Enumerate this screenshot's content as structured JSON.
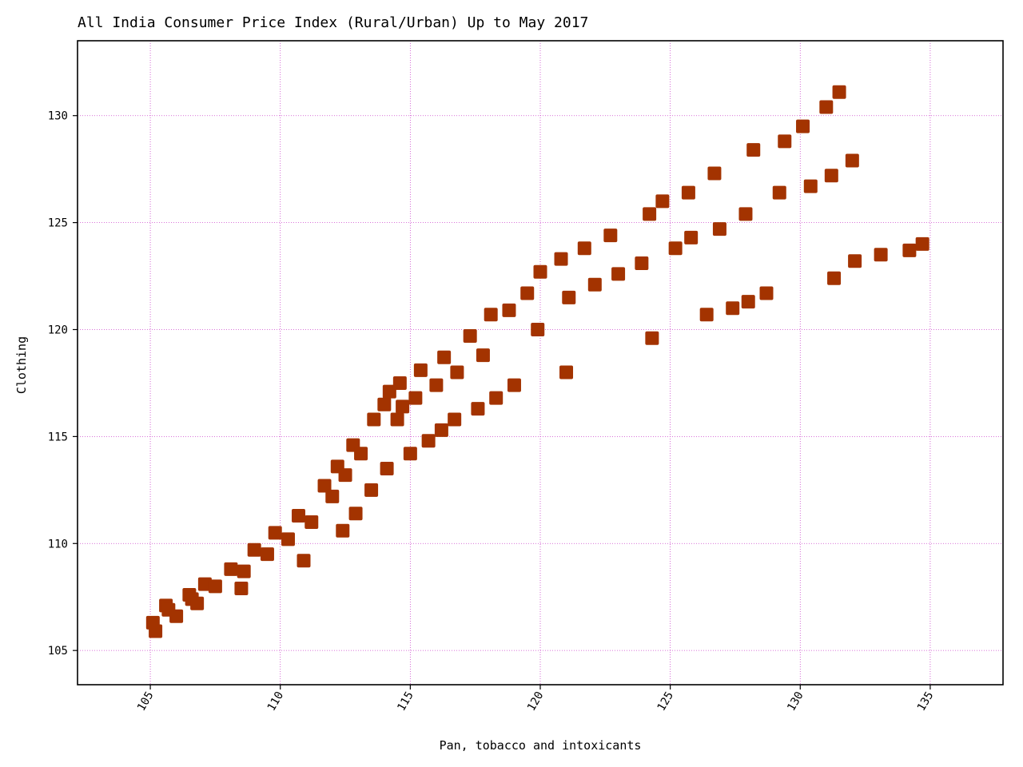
{
  "chart_data": {
    "type": "scatter",
    "title": "All India Consumer Price Index (Rural/Urban) Up to May 2017",
    "xlabel": "Pan, tobacco and intoxicants",
    "ylabel": "Clothing",
    "xlim": [
      102.2,
      137.8
    ],
    "ylim": [
      103.4,
      133.5
    ],
    "xticks": [
      105,
      110,
      115,
      120,
      125,
      130,
      135
    ],
    "yticks": [
      105,
      110,
      115,
      120,
      125,
      130
    ],
    "grid": true,
    "grid_color": "#cc44cc",
    "marker": "square",
    "marker_color": "#a33300",
    "points": [
      {
        "x": 105.1,
        "y": 106.3
      },
      {
        "x": 105.2,
        "y": 105.9
      },
      {
        "x": 105.6,
        "y": 107.1
      },
      {
        "x": 105.7,
        "y": 106.9
      },
      {
        "x": 106.0,
        "y": 106.6
      },
      {
        "x": 106.5,
        "y": 107.6
      },
      {
        "x": 106.6,
        "y": 107.4
      },
      {
        "x": 106.8,
        "y": 107.2
      },
      {
        "x": 107.1,
        "y": 108.1
      },
      {
        "x": 107.5,
        "y": 108.0
      },
      {
        "x": 108.1,
        "y": 108.8
      },
      {
        "x": 108.5,
        "y": 107.9
      },
      {
        "x": 108.6,
        "y": 108.7
      },
      {
        "x": 109.0,
        "y": 109.7
      },
      {
        "x": 109.5,
        "y": 109.5
      },
      {
        "x": 109.8,
        "y": 110.5
      },
      {
        "x": 110.3,
        "y": 110.2
      },
      {
        "x": 110.7,
        "y": 111.3
      },
      {
        "x": 110.9,
        "y": 109.2
      },
      {
        "x": 111.2,
        "y": 111.0
      },
      {
        "x": 111.7,
        "y": 112.7
      },
      {
        "x": 112.0,
        "y": 112.2
      },
      {
        "x": 112.2,
        "y": 113.6
      },
      {
        "x": 112.4,
        "y": 110.6
      },
      {
        "x": 112.5,
        "y": 113.2
      },
      {
        "x": 112.8,
        "y": 114.6
      },
      {
        "x": 112.9,
        "y": 111.4
      },
      {
        "x": 113.1,
        "y": 114.2
      },
      {
        "x": 113.5,
        "y": 112.5
      },
      {
        "x": 113.6,
        "y": 115.8
      },
      {
        "x": 114.0,
        "y": 116.5
      },
      {
        "x": 114.1,
        "y": 113.5
      },
      {
        "x": 114.2,
        "y": 117.1
      },
      {
        "x": 114.5,
        "y": 115.8
      },
      {
        "x": 114.6,
        "y": 117.5
      },
      {
        "x": 114.7,
        "y": 116.4
      },
      {
        "x": 115.0,
        "y": 114.2
      },
      {
        "x": 115.2,
        "y": 116.8
      },
      {
        "x": 115.4,
        "y": 118.1
      },
      {
        "x": 115.7,
        "y": 114.8
      },
      {
        "x": 116.0,
        "y": 117.4
      },
      {
        "x": 116.2,
        "y": 115.3
      },
      {
        "x": 116.3,
        "y": 118.7
      },
      {
        "x": 116.7,
        "y": 115.8
      },
      {
        "x": 116.8,
        "y": 118.0
      },
      {
        "x": 117.3,
        "y": 119.7
      },
      {
        "x": 117.6,
        "y": 116.3
      },
      {
        "x": 117.8,
        "y": 118.8
      },
      {
        "x": 118.1,
        "y": 120.7
      },
      {
        "x": 118.3,
        "y": 116.8
      },
      {
        "x": 118.8,
        "y": 120.9
      },
      {
        "x": 119.0,
        "y": 117.4
      },
      {
        "x": 119.5,
        "y": 121.7
      },
      {
        "x": 119.9,
        "y": 120.0
      },
      {
        "x": 120.0,
        "y": 122.7
      },
      {
        "x": 120.8,
        "y": 123.3
      },
      {
        "x": 121.0,
        "y": 118.0
      },
      {
        "x": 121.1,
        "y": 121.5
      },
      {
        "x": 121.7,
        "y": 123.8
      },
      {
        "x": 122.1,
        "y": 122.1
      },
      {
        "x": 122.7,
        "y": 124.4
      },
      {
        "x": 123.0,
        "y": 122.6
      },
      {
        "x": 123.9,
        "y": 123.1
      },
      {
        "x": 124.2,
        "y": 125.4
      },
      {
        "x": 124.3,
        "y": 119.6
      },
      {
        "x": 124.7,
        "y": 126.0
      },
      {
        "x": 125.2,
        "y": 123.8
      },
      {
        "x": 125.7,
        "y": 126.4
      },
      {
        "x": 125.8,
        "y": 124.3
      },
      {
        "x": 126.4,
        "y": 120.7
      },
      {
        "x": 126.7,
        "y": 127.3
      },
      {
        "x": 126.9,
        "y": 124.7
      },
      {
        "x": 127.4,
        "y": 121.0
      },
      {
        "x": 127.9,
        "y": 125.4
      },
      {
        "x": 128.0,
        "y": 121.3
      },
      {
        "x": 128.2,
        "y": 128.4
      },
      {
        "x": 128.7,
        "y": 121.7
      },
      {
        "x": 129.2,
        "y": 126.4
      },
      {
        "x": 129.4,
        "y": 128.8
      },
      {
        "x": 130.1,
        "y": 129.5
      },
      {
        "x": 130.4,
        "y": 126.7
      },
      {
        "x": 131.0,
        "y": 130.4
      },
      {
        "x": 131.2,
        "y": 127.2
      },
      {
        "x": 131.3,
        "y": 122.4
      },
      {
        "x": 131.5,
        "y": 131.1
      },
      {
        "x": 132.0,
        "y": 127.9
      },
      {
        "x": 132.1,
        "y": 123.2
      },
      {
        "x": 133.1,
        "y": 123.5
      },
      {
        "x": 134.2,
        "y": 123.7
      },
      {
        "x": 134.7,
        "y": 124.0
      }
    ]
  }
}
